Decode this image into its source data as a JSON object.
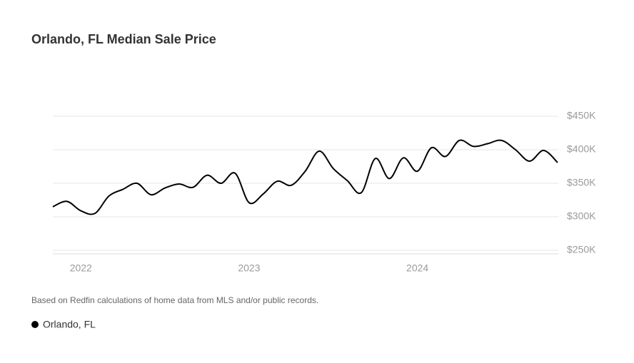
{
  "chart_data": {
    "type": "line",
    "title": "Orlando, FL Median Sale Price",
    "note": "Based on Redfin calculations of home data from MLS and/or public records.",
    "categories": [
      null,
      null,
      "2022",
      null,
      null,
      null,
      null,
      null,
      null,
      null,
      null,
      null,
      null,
      null,
      "2023",
      null,
      null,
      null,
      null,
      null,
      null,
      null,
      null,
      null,
      null,
      null,
      "2024",
      null,
      null,
      null,
      null,
      null,
      null,
      null,
      null,
      null,
      null
    ],
    "series": [
      {
        "name": "Orlando, FL",
        "color": "#000000",
        "values": [
          315000,
          323000,
          309000,
          305000,
          331000,
          341000,
          350000,
          333000,
          343000,
          349000,
          344000,
          362000,
          350000,
          365000,
          321000,
          334000,
          353000,
          347000,
          368000,
          398000,
          372000,
          354000,
          336000,
          387000,
          357000,
          388000,
          368000,
          403000,
          390000,
          414000,
          405000,
          409000,
          414000,
          400000,
          383000,
          399000,
          381000
        ]
      }
    ],
    "ylim": [
      250000,
      450000
    ],
    "yticks": [
      {
        "value": 250000,
        "label": "$250K"
      },
      {
        "value": 300000,
        "label": "$300K"
      },
      {
        "value": 350000,
        "label": "$350K"
      },
      {
        "value": 400000,
        "label": "$400K"
      },
      {
        "value": 450000,
        "label": "$450K"
      }
    ],
    "grid": true
  }
}
